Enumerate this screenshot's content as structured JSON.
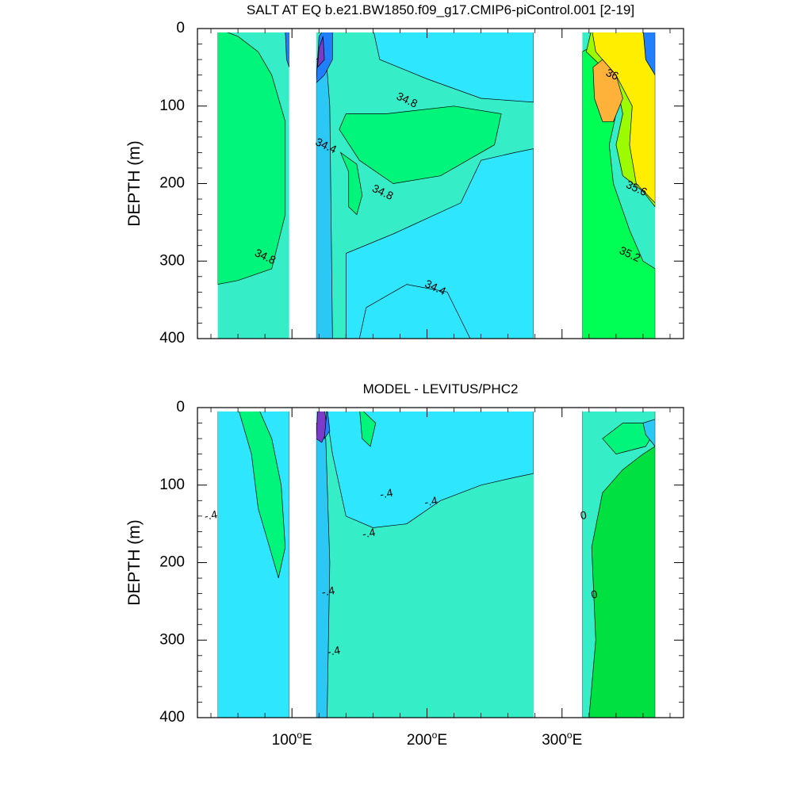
{
  "chart_data": [
    {
      "type": "heatmap",
      "title": "SALT AT EQ b.e21.BW1850.f09_g17.CMIP6-piControl.001 [2-19]",
      "ylabel": "DEPTH (m)",
      "xlabel": "",
      "xlim": [
        30,
        390
      ],
      "ylim": [
        400,
        0
      ],
      "x_ticks": [
        {
          "value": 100,
          "label": "100",
          "suffix": "E"
        },
        {
          "value": 200,
          "label": "200",
          "suffix": "E"
        },
        {
          "value": 300,
          "label": "300",
          "suffix": "E"
        }
      ],
      "y_ticks": [
        0,
        100,
        200,
        300,
        400
      ],
      "show_x_tick_labels": false,
      "ocean_segments": [
        [
          45,
          98
        ],
        [
          118,
          279
        ],
        [
          315,
          369
        ]
      ],
      "land_gaps": [
        [
          98,
          118
        ],
        [
          279,
          315
        ]
      ],
      "contour_labels": [
        {
          "text": "34.8",
          "x": 185,
          "y": 93
        },
        {
          "text": "34.4",
          "x": 125,
          "y": 152
        },
        {
          "text": "34.8",
          "x": 167,
          "y": 212
        },
        {
          "text": "36",
          "x": 337,
          "y": 60
        },
        {
          "text": "35.6",
          "x": 355,
          "y": 207
        },
        {
          "text": "35.2",
          "x": 350,
          "y": 292
        },
        {
          "text": "34.8",
          "x": 80,
          "y": 295
        },
        {
          "text": "34.4",
          "x": 206,
          "y": 335
        }
      ],
      "colors": {
        "background": "#35eec8",
        "low": "#2fe6ff",
        "mid_green": "#00f57a",
        "light_green": "#00ff55",
        "yellow_green": "#9dfb00",
        "yellow": "#ffee00",
        "orange": "#ffb23a",
        "purple": "#7a3bc8",
        "blue": "#1f7fff",
        "pink": "#d600ff"
      }
    },
    {
      "type": "heatmap",
      "title": "MODEL - LEVITUS/PHC2",
      "ylabel": "DEPTH (m)",
      "xlabel": "",
      "xlim": [
        30,
        390
      ],
      "ylim": [
        400,
        0
      ],
      "x_ticks": [
        {
          "value": 100,
          "label": "100",
          "suffix": "E"
        },
        {
          "value": 200,
          "label": "200",
          "suffix": "E"
        },
        {
          "value": 300,
          "label": "300",
          "suffix": "E"
        }
      ],
      "y_ticks": [
        0,
        100,
        200,
        300,
        400
      ],
      "show_x_tick_labels": true,
      "ocean_segments": [
        [
          45,
          98
        ],
        [
          118,
          279
        ],
        [
          315,
          369
        ]
      ],
      "land_gaps": [
        [
          98,
          118
        ],
        [
          279,
          315
        ]
      ],
      "contour_labels": [
        {
          "text": "-.4",
          "x": 40,
          "y": 140
        },
        {
          "text": "-.4",
          "x": 170,
          "y": 112
        },
        {
          "text": "-.4",
          "x": 203,
          "y": 122
        },
        {
          "text": "-.4",
          "x": 157,
          "y": 163
        },
        {
          "text": "0",
          "x": 316,
          "y": 140
        },
        {
          "text": "0",
          "x": 324,
          "y": 242
        },
        {
          "text": "-.4",
          "x": 127,
          "y": 238
        },
        {
          "text": "-.4",
          "x": 131,
          "y": 315
        }
      ],
      "colors": {
        "background": "#35eec8",
        "low": "#2fe6ff",
        "mid_green": "#00f57a",
        "light_green": "#00ff55",
        "deep_green": "#00e040",
        "purple": "#7a3bc8",
        "blue": "#1f7fff",
        "pink": "#d600ff"
      }
    }
  ]
}
